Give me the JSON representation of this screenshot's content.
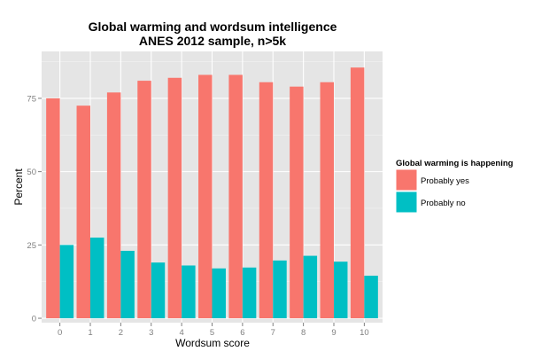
{
  "chart_data": {
    "type": "bar",
    "title": "Global warming and wordsum intelligence",
    "subtitle": "ANES 2012 sample, n>5k",
    "xlabel": "Wordsum score",
    "ylabel": "Percent",
    "categories": [
      "0",
      "1",
      "2",
      "3",
      "4",
      "5",
      "6",
      "7",
      "8",
      "9",
      "10"
    ],
    "ylim": [
      -1.5,
      91
    ],
    "yticks": [
      0,
      25,
      50,
      75
    ],
    "grid": true,
    "legend_position": "right",
    "legend_title": "Global warming is happening",
    "series": [
      {
        "name": "Probably yes",
        "color": "#F8766D",
        "values": [
          75,
          72.5,
          77,
          81,
          82,
          83,
          83,
          80.5,
          79,
          80.5,
          85.5
        ]
      },
      {
        "name": "Probably no",
        "color": "#00BFC4",
        "values": [
          25,
          27.5,
          23,
          19,
          18,
          17,
          17.3,
          19.7,
          21.3,
          19.3,
          14.5
        ]
      }
    ]
  }
}
